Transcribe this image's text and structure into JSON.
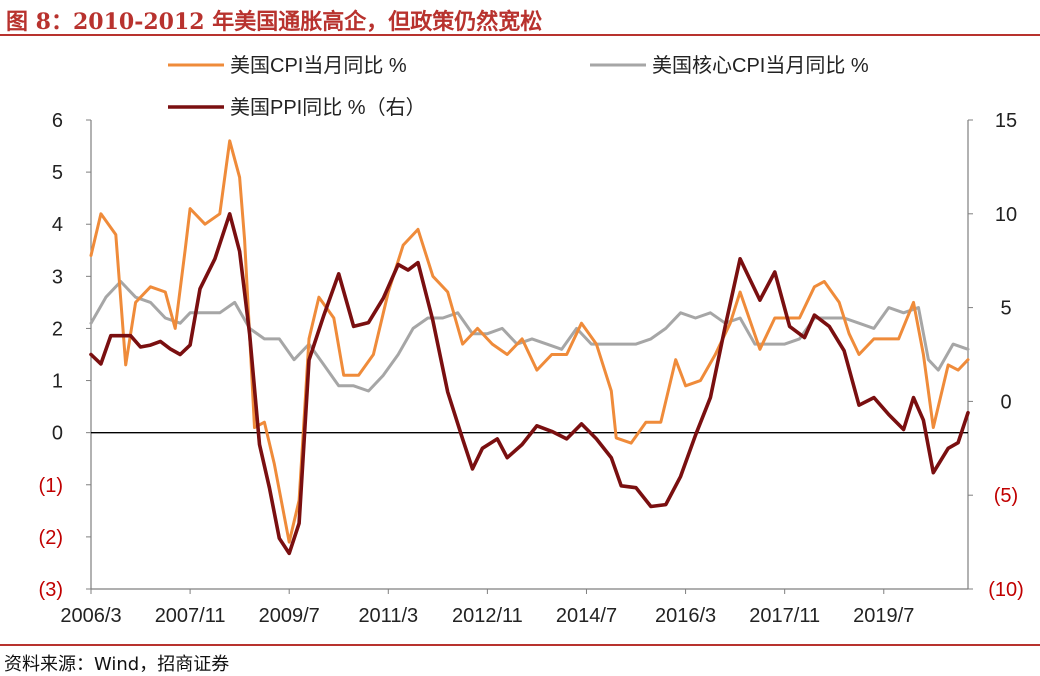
{
  "title": "图 8：2010-2012 年美国通胀高企，但政策仍然宽松",
  "source": "资料来源：Wind，招商证券",
  "colors": {
    "cpi": "#ef8b3a",
    "core": "#a6a6a6",
    "ppi": "#7a0f10",
    "negative_label": "#c00000",
    "accent": "#b8322e"
  },
  "chart_data": {
    "type": "line",
    "x_tick_labels": [
      "2006/3",
      "2007/11",
      "2009/7",
      "2011/3",
      "2012/11",
      "2014/7",
      "2016/3",
      "2017/11",
      "2019/7"
    ],
    "y_left": {
      "range": [
        -3,
        6
      ],
      "tick_labels": [
        "6",
        "5",
        "4",
        "3",
        "2",
        "1",
        "0",
        "(1)",
        "(2)",
        "(3)"
      ]
    },
    "y_right": {
      "range": [
        -10,
        15
      ],
      "tick_labels": [
        "15",
        "10",
        "5",
        "0",
        "(5)",
        "(10)"
      ]
    },
    "legend": {
      "cpi": "美国CPI当月同比 %",
      "core": "美国核心CPI当月同比 %",
      "ppi": "美国PPI同比 %（右）"
    },
    "series": [
      {
        "key": "cpi",
        "name": "美国CPI当月同比 %",
        "axis": "left",
        "points": [
          [
            "2006-03",
            3.4
          ],
          [
            "2006-05",
            4.2
          ],
          [
            "2006-08",
            3.8
          ],
          [
            "2006-10",
            1.3
          ],
          [
            "2006-12",
            2.5
          ],
          [
            "2007-03",
            2.8
          ],
          [
            "2007-06",
            2.7
          ],
          [
            "2007-08",
            2.0
          ],
          [
            "2007-10",
            3.5
          ],
          [
            "2007-11",
            4.3
          ],
          [
            "2008-02",
            4.0
          ],
          [
            "2008-05",
            4.2
          ],
          [
            "2008-07",
            5.6
          ],
          [
            "2008-09",
            4.9
          ],
          [
            "2008-10",
            3.7
          ],
          [
            "2008-12",
            0.1
          ],
          [
            "2009-02",
            0.2
          ],
          [
            "2009-04",
            -0.6
          ],
          [
            "2009-07",
            -2.1
          ],
          [
            "2009-09",
            -1.3
          ],
          [
            "2009-11",
            1.8
          ],
          [
            "2010-01",
            2.6
          ],
          [
            "2010-04",
            2.2
          ],
          [
            "2010-06",
            1.1
          ],
          [
            "2010-09",
            1.1
          ],
          [
            "2010-12",
            1.5
          ],
          [
            "2011-03",
            2.7
          ],
          [
            "2011-06",
            3.6
          ],
          [
            "2011-09",
            3.9
          ],
          [
            "2011-12",
            3.0
          ],
          [
            "2012-03",
            2.7
          ],
          [
            "2012-06",
            1.7
          ],
          [
            "2012-09",
            2.0
          ],
          [
            "2012-12",
            1.7
          ],
          [
            "2013-03",
            1.5
          ],
          [
            "2013-06",
            1.8
          ],
          [
            "2013-09",
            1.2
          ],
          [
            "2013-12",
            1.5
          ],
          [
            "2014-03",
            1.5
          ],
          [
            "2014-06",
            2.1
          ],
          [
            "2014-09",
            1.7
          ],
          [
            "2014-12",
            0.8
          ],
          [
            "2015-01",
            -0.1
          ],
          [
            "2015-04",
            -0.2
          ],
          [
            "2015-07",
            0.2
          ],
          [
            "2015-10",
            0.2
          ],
          [
            "2016-01",
            1.4
          ],
          [
            "2016-03",
            0.9
          ],
          [
            "2016-06",
            1.0
          ],
          [
            "2016-09",
            1.5
          ],
          [
            "2016-12",
            2.1
          ],
          [
            "2017-02",
            2.7
          ],
          [
            "2017-06",
            1.6
          ],
          [
            "2017-09",
            2.2
          ],
          [
            "2017-11",
            2.2
          ],
          [
            "2018-02",
            2.2
          ],
          [
            "2018-05",
            2.8
          ],
          [
            "2018-07",
            2.9
          ],
          [
            "2018-10",
            2.5
          ],
          [
            "2018-12",
            1.9
          ],
          [
            "2019-02",
            1.5
          ],
          [
            "2019-05",
            1.8
          ],
          [
            "2019-07",
            1.8
          ],
          [
            "2019-10",
            1.8
          ],
          [
            "2020-01",
            2.5
          ],
          [
            "2020-03",
            1.5
          ],
          [
            "2020-05",
            0.1
          ],
          [
            "2020-08",
            1.3
          ],
          [
            "2020-10",
            1.2
          ],
          [
            "2020-12",
            1.4
          ]
        ]
      },
      {
        "key": "core",
        "name": "美国核心CPI当月同比 %",
        "axis": "left",
        "points": [
          [
            "2006-03",
            2.1
          ],
          [
            "2006-06",
            2.6
          ],
          [
            "2006-09",
            2.9
          ],
          [
            "2006-12",
            2.6
          ],
          [
            "2007-03",
            2.5
          ],
          [
            "2007-06",
            2.2
          ],
          [
            "2007-09",
            2.1
          ],
          [
            "2007-11",
            2.3
          ],
          [
            "2008-02",
            2.3
          ],
          [
            "2008-05",
            2.3
          ],
          [
            "2008-08",
            2.5
          ],
          [
            "2008-11",
            2.0
          ],
          [
            "2009-02",
            1.8
          ],
          [
            "2009-05",
            1.8
          ],
          [
            "2009-08",
            1.4
          ],
          [
            "2009-11",
            1.7
          ],
          [
            "2010-02",
            1.3
          ],
          [
            "2010-05",
            0.9
          ],
          [
            "2010-08",
            0.9
          ],
          [
            "2010-11",
            0.8
          ],
          [
            "2011-02",
            1.1
          ],
          [
            "2011-05",
            1.5
          ],
          [
            "2011-08",
            2.0
          ],
          [
            "2011-11",
            2.2
          ],
          [
            "2012-02",
            2.2
          ],
          [
            "2012-05",
            2.3
          ],
          [
            "2012-08",
            1.9
          ],
          [
            "2012-11",
            1.9
          ],
          [
            "2013-02",
            2.0
          ],
          [
            "2013-05",
            1.7
          ],
          [
            "2013-08",
            1.8
          ],
          [
            "2013-11",
            1.7
          ],
          [
            "2014-02",
            1.6
          ],
          [
            "2014-05",
            2.0
          ],
          [
            "2014-08",
            1.7
          ],
          [
            "2014-11",
            1.7
          ],
          [
            "2015-02",
            1.7
          ],
          [
            "2015-05",
            1.7
          ],
          [
            "2015-08",
            1.8
          ],
          [
            "2015-11",
            2.0
          ],
          [
            "2016-02",
            2.3
          ],
          [
            "2016-05",
            2.2
          ],
          [
            "2016-08",
            2.3
          ],
          [
            "2016-11",
            2.1
          ],
          [
            "2017-02",
            2.2
          ],
          [
            "2017-05",
            1.7
          ],
          [
            "2017-08",
            1.7
          ],
          [
            "2017-11",
            1.7
          ],
          [
            "2018-02",
            1.8
          ],
          [
            "2018-05",
            2.2
          ],
          [
            "2018-08",
            2.2
          ],
          [
            "2018-11",
            2.2
          ],
          [
            "2019-02",
            2.1
          ],
          [
            "2019-05",
            2.0
          ],
          [
            "2019-08",
            2.4
          ],
          [
            "2019-11",
            2.3
          ],
          [
            "2020-02",
            2.4
          ],
          [
            "2020-04",
            1.4
          ],
          [
            "2020-06",
            1.2
          ],
          [
            "2020-09",
            1.7
          ],
          [
            "2020-12",
            1.6
          ]
        ]
      },
      {
        "key": "ppi",
        "name": "美国PPI同比 %（右）",
        "axis": "right",
        "points": [
          [
            "2006-03",
            2.5
          ],
          [
            "2006-05",
            2.0
          ],
          [
            "2006-07",
            3.5
          ],
          [
            "2006-09",
            3.5
          ],
          [
            "2006-11",
            3.5
          ],
          [
            "2007-01",
            2.9
          ],
          [
            "2007-03",
            3.0
          ],
          [
            "2007-05",
            3.2
          ],
          [
            "2007-07",
            2.8
          ],
          [
            "2007-09",
            2.5
          ],
          [
            "2007-11",
            3.0
          ],
          [
            "2008-01",
            6.0
          ],
          [
            "2008-04",
            7.6
          ],
          [
            "2008-07",
            10.0
          ],
          [
            "2008-09",
            8.0
          ],
          [
            "2008-11",
            3.6
          ],
          [
            "2009-01",
            -2.3
          ],
          [
            "2009-03",
            -4.6
          ],
          [
            "2009-05",
            -7.3
          ],
          [
            "2009-07",
            -8.1
          ],
          [
            "2009-09",
            -6.5
          ],
          [
            "2009-11",
            2.2
          ],
          [
            "2010-02",
            4.6
          ],
          [
            "2010-05",
            6.8
          ],
          [
            "2010-08",
            4.0
          ],
          [
            "2010-11",
            4.2
          ],
          [
            "2011-02",
            5.5
          ],
          [
            "2011-05",
            7.3
          ],
          [
            "2011-07",
            7.0
          ],
          [
            "2011-09",
            7.4
          ],
          [
            "2011-12",
            4.3
          ],
          [
            "2012-03",
            0.5
          ],
          [
            "2012-06",
            -2.0
          ],
          [
            "2012-08",
            -3.6
          ],
          [
            "2012-10",
            -2.5
          ],
          [
            "2013-01",
            -2.0
          ],
          [
            "2013-03",
            -3.0
          ],
          [
            "2013-06",
            -2.3
          ],
          [
            "2013-09",
            -1.3
          ],
          [
            "2013-12",
            -1.6
          ],
          [
            "2014-03",
            -2.0
          ],
          [
            "2014-06",
            -1.2
          ],
          [
            "2014-09",
            -2.0
          ],
          [
            "2014-12",
            -3.0
          ],
          [
            "2015-02",
            -4.5
          ],
          [
            "2015-05",
            -4.6
          ],
          [
            "2015-08",
            -5.6
          ],
          [
            "2015-11",
            -5.5
          ],
          [
            "2016-02",
            -4.0
          ],
          [
            "2016-05",
            -1.8
          ],
          [
            "2016-08",
            0.2
          ],
          [
            "2016-11",
            4.0
          ],
          [
            "2017-02",
            7.6
          ],
          [
            "2017-04",
            6.5
          ],
          [
            "2017-06",
            5.4
          ],
          [
            "2017-09",
            6.9
          ],
          [
            "2017-12",
            4.0
          ],
          [
            "2018-03",
            3.4
          ],
          [
            "2018-05",
            4.6
          ],
          [
            "2018-08",
            4.0
          ],
          [
            "2018-11",
            2.7
          ],
          [
            "2019-02",
            -0.2
          ],
          [
            "2019-05",
            0.2
          ],
          [
            "2019-08",
            -0.7
          ],
          [
            "2019-11",
            -1.5
          ],
          [
            "2020-01",
            0.2
          ],
          [
            "2020-03",
            -1.0
          ],
          [
            "2020-05",
            -3.8
          ],
          [
            "2020-08",
            -2.5
          ],
          [
            "2020-10",
            -2.2
          ],
          [
            "2020-12",
            -0.6
          ]
        ]
      }
    ]
  }
}
